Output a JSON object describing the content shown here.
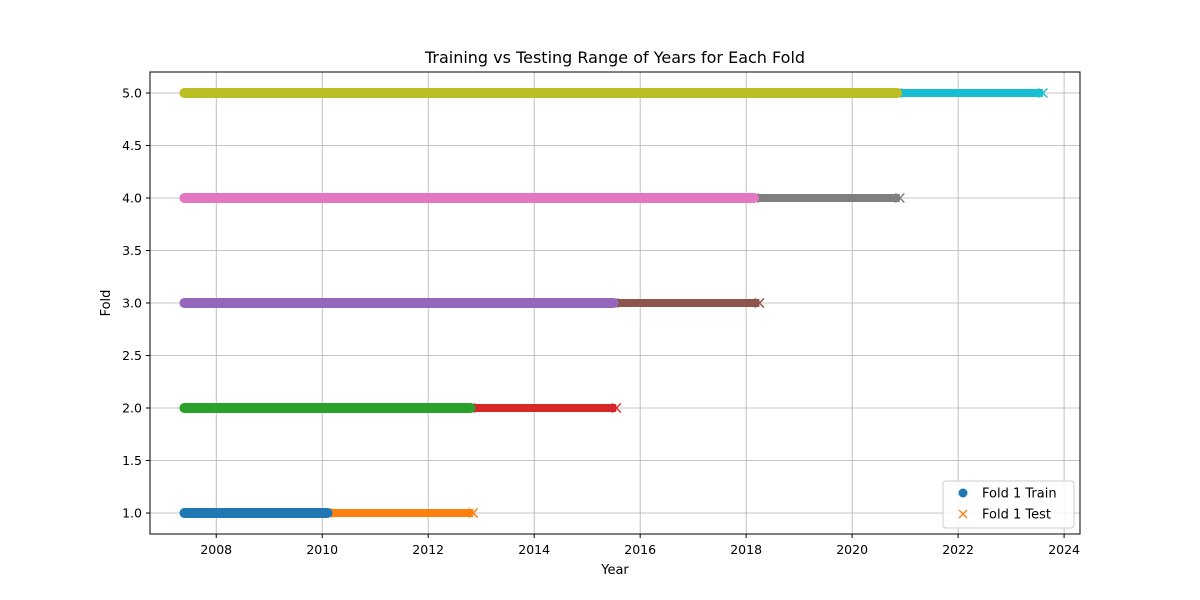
{
  "chart_data": {
    "type": "line",
    "title": "Training vs Testing Range of Years for Each Fold",
    "xlabel": "Year",
    "ylabel": "Fold",
    "xlim": [
      2006.75,
      2024.3
    ],
    "ylim": [
      0.8,
      5.2
    ],
    "xticks": [
      2008,
      2010,
      2012,
      2014,
      2016,
      2018,
      2020,
      2022,
      2024
    ],
    "yticks": [
      1.0,
      1.5,
      2.0,
      2.5,
      3.0,
      3.5,
      4.0,
      4.5,
      5.0
    ],
    "ytick_labels": [
      "1.0",
      "1.5",
      "2.0",
      "2.5",
      "3.0",
      "3.5",
      "4.0",
      "4.5",
      "5.0"
    ],
    "grid": true,
    "legend_position": "bottom-right",
    "legend": [
      {
        "label": "Fold 1 Train",
        "marker": "circle",
        "color": "#1f77b4"
      },
      {
        "label": "Fold 1 Test",
        "marker": "x",
        "color": "#ff7f0e"
      }
    ],
    "folds": [
      {
        "fold": 1,
        "train": {
          "start": 2007.4,
          "end": 2010.1,
          "color": "#1f77b4"
        },
        "test": {
          "start": 2010.1,
          "end": 2012.85,
          "color": "#ff7f0e"
        }
      },
      {
        "fold": 2,
        "train": {
          "start": 2007.4,
          "end": 2012.8,
          "color": "#2ca02c"
        },
        "test": {
          "start": 2012.8,
          "end": 2015.55,
          "color": "#d62728"
        }
      },
      {
        "fold": 3,
        "train": {
          "start": 2007.4,
          "end": 2015.5,
          "color": "#9467bd"
        },
        "test": {
          "start": 2015.5,
          "end": 2018.25,
          "color": "#8c564b"
        }
      },
      {
        "fold": 4,
        "train": {
          "start": 2007.4,
          "end": 2018.15,
          "color": "#e377c2"
        },
        "test": {
          "start": 2018.15,
          "end": 2020.9,
          "color": "#7f7f7f"
        }
      },
      {
        "fold": 5,
        "train": {
          "start": 2007.4,
          "end": 2020.85,
          "color": "#bcbd22"
        },
        "test": {
          "start": 2020.85,
          "end": 2023.6,
          "color": "#17becf"
        }
      }
    ]
  }
}
